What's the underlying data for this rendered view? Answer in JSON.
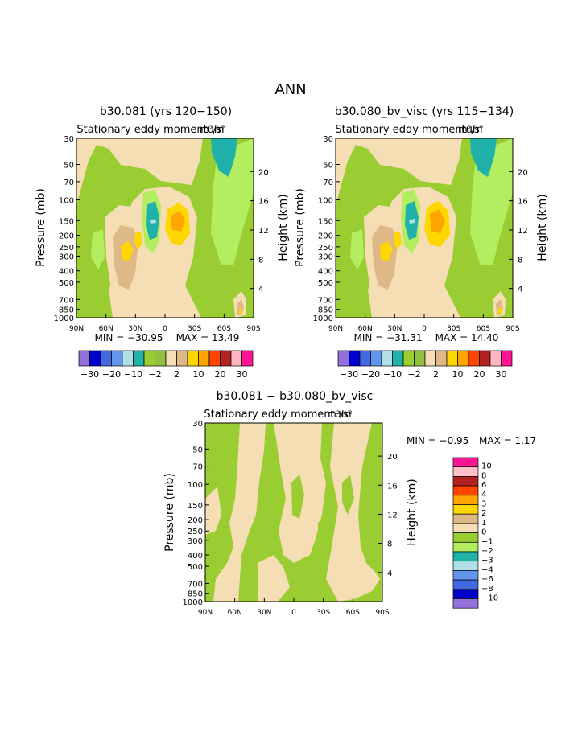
{
  "page_title": "ANN",
  "chart_data": [
    {
      "type": "contour",
      "title": "b30.081 (yrs 120−150)",
      "subtitle": "Stationary eddy momentum",
      "units": "m²/s²",
      "xlabel": "",
      "ylabel": "Pressure (mb)",
      "y2label": "Height (km)",
      "xticks": [
        "90N",
        "60N",
        "30N",
        "0",
        "30S",
        "60S",
        "90S"
      ],
      "yticks": [
        30,
        50,
        70,
        100,
        150,
        200,
        250,
        300,
        400,
        500,
        700,
        850,
        1000
      ],
      "y2ticks": [
        20,
        16,
        12,
        8,
        4
      ],
      "min_text": "MIN = −30.95",
      "max_text": "MAX =  13.49",
      "colorbar_labels": [
        "−30",
        "−20",
        "−10",
        "−2",
        "2",
        "10",
        "20",
        "30"
      ]
    },
    {
      "type": "contour",
      "title": "b30.080_bv_visc (yrs 115−134)",
      "subtitle": "Stationary eddy momentum",
      "units": "m²/s²",
      "xlabel": "",
      "ylabel": "Pressure (mb)",
      "y2label": "Height (km)",
      "xticks": [
        "90N",
        "60N",
        "30N",
        "0",
        "30S",
        "60S",
        "90S"
      ],
      "yticks": [
        30,
        50,
        70,
        100,
        150,
        200,
        250,
        300,
        400,
        500,
        700,
        850,
        1000
      ],
      "y2ticks": [
        20,
        16,
        12,
        8,
        4
      ],
      "min_text": "MIN = −31.31",
      "max_text": "MAX =  14.40",
      "colorbar_labels": [
        "−30",
        "−20",
        "−10",
        "−2",
        "2",
        "10",
        "20",
        "30"
      ]
    },
    {
      "type": "contour",
      "title": "b30.081 − b30.080_bv_visc",
      "subtitle": "Stationary eddy momentum",
      "units": "m²/s²",
      "xlabel": "",
      "ylabel": "Pressure (mb)",
      "y2label": "Height (km)",
      "xticks": [
        "90N",
        "60N",
        "30N",
        "0",
        "30S",
        "60S",
        "90S"
      ],
      "yticks": [
        30,
        50,
        70,
        100,
        150,
        200,
        250,
        300,
        400,
        500,
        700,
        850,
        1000
      ],
      "y2ticks": [
        20,
        16,
        12,
        8,
        4
      ],
      "min_text": "MIN =   −0.95",
      "max_text": "MAX =    1.17",
      "colorbar_labels": [
        "10",
        "8",
        "6",
        "4",
        "3",
        "2",
        "1",
        "0",
        "−1",
        "−2",
        "−3",
        "−4",
        "−6",
        "−8",
        "−10"
      ]
    }
  ],
  "colors": {
    "top_bar": [
      "#9370db",
      "#0000cd",
      "#4169e1",
      "#6495ed",
      "#b0e0e6",
      "#20b2aa",
      "#9acd32",
      "#90c040",
      "#f5deb3",
      "#deb887",
      "#ffd700",
      "#ffa500",
      "#ff4500",
      "#b22222",
      "#ffb6c1",
      "#ff1493"
    ],
    "diff_bar": [
      "#ff1493",
      "#ffc0cb",
      "#b22222",
      "#ff4500",
      "#ffa500",
      "#ffd700",
      "#deb887",
      "#f5deb3",
      "#9acd32",
      "#b3ee60",
      "#20b2aa",
      "#b0e0e6",
      "#6495ed",
      "#4169e1",
      "#0000cd",
      "#9370db"
    ],
    "tan": "#f5deb3",
    "green": "#9acd32",
    "light_green": "#b3ee60",
    "teal": "#20b2aa",
    "pale_cyan": "#b0e0e6",
    "brown": "#deb887",
    "gold": "#ffd700",
    "orange": "#ffa500",
    "red_orange": "#ff4500",
    "pink": "#ffb6c1"
  }
}
